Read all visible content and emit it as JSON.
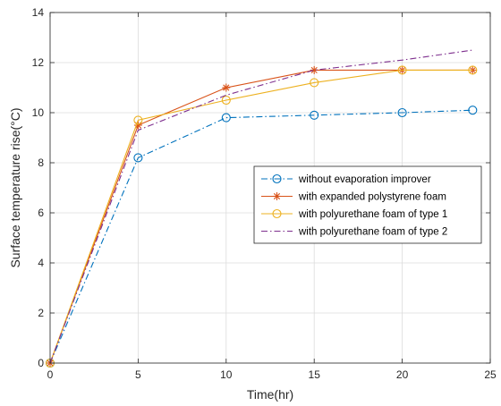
{
  "chart_data": {
    "type": "line",
    "xlabel": "Time(hr)",
    "ylabel": "Surface temperature rise(°C)",
    "xlim": [
      0,
      25
    ],
    "ylim": [
      0,
      14
    ],
    "xticks": [
      "0",
      "5",
      "10",
      "15",
      "20",
      "25"
    ],
    "yticks": [
      "0",
      "2",
      "4",
      "6",
      "8",
      "10",
      "12",
      "14"
    ],
    "grid": true,
    "legend_position": "center-right",
    "series": [
      {
        "name": "without evaporation improver",
        "x": [
          0,
          5,
          10,
          15,
          20,
          24
        ],
        "y": [
          0,
          8.2,
          9.8,
          9.9,
          10.0,
          10.1
        ],
        "color": "#0072BD",
        "line_style": "dash-dot",
        "marker": "circle"
      },
      {
        "name": "with expanded polystyrene foam",
        "x": [
          0,
          5,
          10,
          15,
          20,
          24
        ],
        "y": [
          0,
          9.5,
          11.0,
          11.7,
          11.7,
          11.7
        ],
        "color": "#D95319",
        "line_style": "solid",
        "marker": "asterisk"
      },
      {
        "name": "with polyurethane foam of type 1",
        "x": [
          0,
          5,
          10,
          15,
          20,
          24
        ],
        "y": [
          0,
          9.7,
          10.5,
          11.2,
          11.7,
          11.7
        ],
        "color": "#EDB120",
        "line_style": "solid",
        "marker": "circle"
      },
      {
        "name": "with polyurethane foam of type 2",
        "x": [
          0,
          5,
          10,
          15,
          20,
          24
        ],
        "y": [
          0,
          9.3,
          10.7,
          11.7,
          12.1,
          12.5
        ],
        "color": "#7E2F8E",
        "line_style": "dash-dot",
        "marker": "none"
      }
    ]
  }
}
